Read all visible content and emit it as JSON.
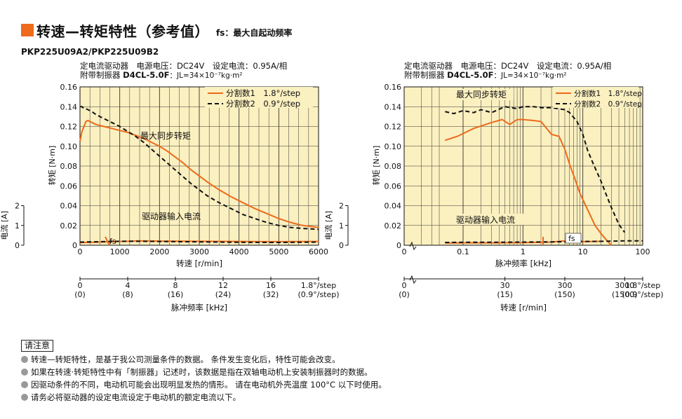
{
  "header": {
    "title": "转速—转矩特性（参考值）",
    "subtitle": "fs：最大自起动频率",
    "model": "PKP225U09A2/PKP225U09B2"
  },
  "colors": {
    "accent": "#ee6a1c",
    "grid_bg": "#fbf0c0",
    "series1": "#ee6a1c",
    "series2": "#111111"
  },
  "chart_data": [
    {
      "type": "line",
      "info_line1": "定电流驱动器　电源电压：DC24V　设定电流：0.95A/相",
      "info_line2_prefix": "附带制振器",
      "info_line2_model": "D4CL-5.0F",
      "info_line2_inertia": "：JL=34×10⁻⁷kg·m²",
      "ylabel_torque": "转矩 [N·m]",
      "ylabel_current": "电流 [A]",
      "xlabel": "转速 [r/min]",
      "xlabel2": "脉冲频率 [kHz]",
      "x_scale": "linear",
      "xlim": [
        0,
        6000
      ],
      "ylim_torque": [
        0,
        0.16
      ],
      "ylim_current": [
        0,
        2
      ],
      "x_ticks": [
        "0",
        "1000",
        "2000",
        "3000",
        "4000",
        "5000",
        "6000"
      ],
      "y_ticks": [
        "0",
        "0.02",
        "0.04",
        "0.06",
        "0.08",
        "0.10",
        "0.12",
        "0.14",
        "0.16"
      ],
      "current_ticks": [
        "0",
        "1",
        "2"
      ],
      "freq_ticks": [
        "0",
        "4",
        "8",
        "12",
        "16",
        "1.8°/step"
      ],
      "freq_ticks_alt": [
        "(0)",
        "(8)",
        "(16)",
        "(24)",
        "(32)",
        "(0.9°/step)"
      ],
      "legend": [
        {
          "name": "分割数1　1.8°/step"
        },
        {
          "name": "分割数2　0.9°/step"
        }
      ],
      "annotations": {
        "pullout": "最大同步转矩",
        "input_current": "驱动器输入电流",
        "fs": "fs"
      },
      "series": [
        {
          "name": "分割数1　1.8°/step",
          "role": "torque",
          "x": [
            0,
            50,
            100,
            150,
            200,
            300,
            400,
            600,
            800,
            1000,
            1200,
            1400,
            1600,
            1800,
            2000,
            2200,
            2400,
            2600,
            2800,
            3000,
            3200,
            3500,
            3800,
            4100,
            4400,
            4700,
            5000,
            5300,
            5600,
            6000
          ],
          "y": [
            0.105,
            0.115,
            0.12,
            0.125,
            0.126,
            0.124,
            0.122,
            0.12,
            0.118,
            0.116,
            0.114,
            0.111,
            0.108,
            0.104,
            0.1,
            0.095,
            0.089,
            0.083,
            0.076,
            0.07,
            0.064,
            0.056,
            0.049,
            0.043,
            0.037,
            0.032,
            0.027,
            0.023,
            0.02,
            0.018
          ]
        },
        {
          "name": "分割数2　0.9°/step",
          "role": "torque",
          "x": [
            0,
            50,
            100,
            150,
            200,
            300,
            400,
            600,
            800,
            1000,
            1200,
            1400,
            1600,
            1800,
            2000,
            2200,
            2400,
            2600,
            2800,
            3000,
            3200,
            3500,
            3800,
            4100,
            4400,
            4700,
            5000,
            5300,
            5600,
            6000
          ],
          "y": [
            0.14,
            0.14,
            0.138,
            0.138,
            0.137,
            0.135,
            0.132,
            0.128,
            0.124,
            0.12,
            0.115,
            0.11,
            0.104,
            0.097,
            0.09,
            0.083,
            0.076,
            0.069,
            0.062,
            0.056,
            0.05,
            0.043,
            0.037,
            0.031,
            0.027,
            0.023,
            0.02,
            0.018,
            0.017,
            0.016
          ]
        },
        {
          "name": "分割数1　1.8°/step",
          "role": "current",
          "x": [
            0,
            500,
            1000,
            1500,
            2000,
            3000,
            4000,
            5000,
            6000
          ],
          "y": [
            0.13,
            0.16,
            0.19,
            0.22,
            0.21,
            0.2,
            0.19,
            0.18,
            0.19
          ]
        },
        {
          "name": "分割数2　0.9°/step",
          "role": "current",
          "x": [
            0,
            500,
            1000,
            1500,
            2000,
            3000,
            4000,
            5000,
            6000
          ],
          "y": [
            0.16,
            0.18,
            0.2,
            0.2,
            0.19,
            0.17,
            0.15,
            0.14,
            0.16
          ]
        }
      ]
    },
    {
      "type": "line",
      "info_line1": "定电流驱动器　电源电压：DC24V　设定电流：0.95A/相",
      "info_line2_prefix": "附带制振器",
      "info_line2_model": "D4CL-5.0F",
      "info_line2_inertia": "：JL=34×10⁻⁷kg·m²",
      "ylabel_torque": "转矩 [N·m]",
      "ylabel_current": "电流 [A]",
      "xlabel": "脉冲频率 [kHz]",
      "xlabel2": "转速 [r/min]",
      "x_scale": "log",
      "xlim": [
        0.05,
        100
      ],
      "ylim_torque": [
        0,
        0.16
      ],
      "ylim_current": [
        0,
        2
      ],
      "x_ticks": [
        "0",
        "0.1",
        "1",
        "10",
        "100"
      ],
      "y_ticks": [
        "0",
        "0.02",
        "0.04",
        "0.06",
        "0.08",
        "0.10",
        "0.12",
        "0.14",
        "0.16"
      ],
      "current_ticks": [
        "0",
        "1",
        "2"
      ],
      "speed_ticks": [
        "0",
        "30",
        "300",
        "3000",
        "1.8°/step"
      ],
      "speed_ticks_alt": [
        "(0)",
        "(15)",
        "(150)",
        "(1500)",
        "(0.9°/step)"
      ],
      "legend": [
        {
          "name": "分割数1　1.8°/step"
        },
        {
          "name": "分割数2　0.9°/step"
        }
      ],
      "annotations": {
        "pullout": "最大同步转矩",
        "input_current": "驱动器输入电流",
        "fs": "fs"
      },
      "series": [
        {
          "name": "分割数1　1.8°/step",
          "role": "torque",
          "x": [
            0.05,
            0.08,
            0.15,
            0.3,
            0.45,
            0.6,
            0.8,
            1.0,
            1.5,
            2.0,
            3.0,
            4.0,
            5.0,
            6.0,
            7.0,
            9.0,
            12.0,
            16.0,
            20.0,
            25.0,
            30.0
          ],
          "y": [
            0.106,
            0.11,
            0.118,
            0.124,
            0.127,
            0.122,
            0.127,
            0.127,
            0.126,
            0.125,
            0.112,
            0.11,
            0.097,
            0.082,
            0.071,
            0.052,
            0.036,
            0.02,
            0.012,
            0.005,
            0.0
          ]
        },
        {
          "name": "分割数2　0.9°/step",
          "role": "torque",
          "x": [
            0.05,
            0.07,
            0.1,
            0.15,
            0.2,
            0.3,
            0.5,
            0.8,
            1.0,
            1.5,
            2.0,
            3.0,
            5.0,
            6.0,
            8.0,
            10.0,
            12.0,
            15.0,
            20.0,
            25.0,
            30.0,
            40.0,
            50.0
          ],
          "y": [
            0.135,
            0.133,
            0.136,
            0.134,
            0.137,
            0.134,
            0.14,
            0.138,
            0.14,
            0.14,
            0.139,
            0.139,
            0.137,
            0.134,
            0.125,
            0.112,
            0.096,
            0.082,
            0.065,
            0.05,
            0.038,
            0.021,
            0.013
          ]
        },
        {
          "name": "分割数1　1.8°/step",
          "role": "current",
          "x": [
            0.05,
            0.1,
            0.3,
            1.0,
            3.0,
            5.0,
            8.0,
            12.0,
            20.0
          ],
          "y": [
            0.11,
            0.12,
            0.12,
            0.13,
            0.16,
            0.22,
            0.2,
            0.18,
            0.2
          ]
        },
        {
          "name": "分割数2　0.9°/step",
          "role": "current",
          "x": [
            0.05,
            0.1,
            0.3,
            1.0,
            3.0,
            10.0,
            20.0,
            50.0,
            100.0
          ],
          "y": [
            0.14,
            0.15,
            0.15,
            0.16,
            0.17,
            0.19,
            0.2,
            0.22,
            0.22
          ]
        }
      ]
    }
  ],
  "notice": {
    "title": "请注意",
    "items": [
      "转速—转矩特性，是基于我公司测量条件的数据。 条件发生变化后，特性可能会改变。",
      "如果在转速·转矩特性中有「制振器」记述时，该数据是指在双轴电动机上安装制振器时的数据。",
      "因驱动条件的不同，电动机可能会出现明显发热的情形。 请在电动机外壳温度 100°C 以下时使用。",
      "请务必将驱动器的设定电流设定于电动机的额定电流以下。"
    ]
  }
}
